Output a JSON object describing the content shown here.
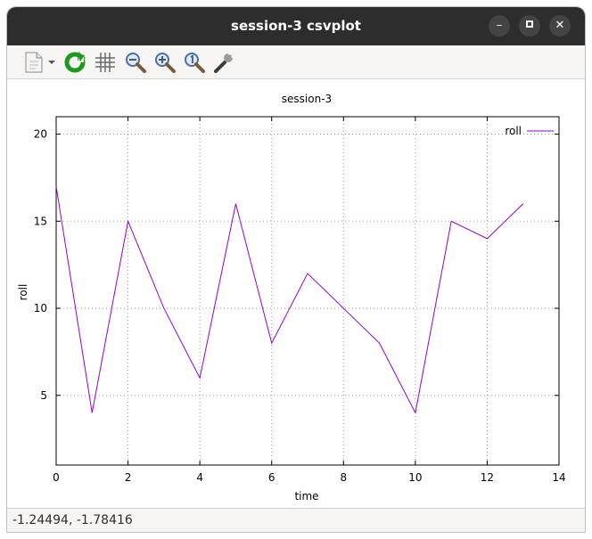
{
  "window": {
    "title": "session-3 csvplot"
  },
  "toolbar": {
    "items": [
      {
        "name": "export",
        "icon": "document-export-icon"
      },
      {
        "name": "dropdown",
        "icon": "chevron-down-icon"
      },
      {
        "name": "replot",
        "icon": "refresh-icon"
      },
      {
        "name": "grid",
        "icon": "grid-icon"
      },
      {
        "name": "zoom-out",
        "icon": "zoom-out-icon"
      },
      {
        "name": "zoom-in",
        "icon": "zoom-in-icon"
      },
      {
        "name": "zoom-reset",
        "icon": "zoom-original-icon"
      },
      {
        "name": "settings",
        "icon": "wrench-icon"
      }
    ]
  },
  "status": {
    "coordinates": "-1.24494, -1.78416"
  },
  "chart_data": {
    "type": "line",
    "title": "session-3",
    "xlabel": "time",
    "ylabel": "roll",
    "xlim": [
      0,
      14
    ],
    "ylim": [
      1,
      21
    ],
    "xticks": [
      0,
      2,
      4,
      6,
      8,
      10,
      12,
      14
    ],
    "yticks": [
      5,
      10,
      15,
      20
    ],
    "grid": true,
    "legend_position": "top-right",
    "series": [
      {
        "name": "roll",
        "color": "#9400d3",
        "x": [
          0,
          1,
          2,
          3,
          4,
          5,
          6,
          7,
          8,
          9,
          10,
          11,
          12,
          13
        ],
        "y": [
          17,
          4,
          15,
          10,
          6,
          16,
          8,
          12,
          10,
          8,
          4,
          15,
          14,
          16
        ]
      }
    ]
  }
}
